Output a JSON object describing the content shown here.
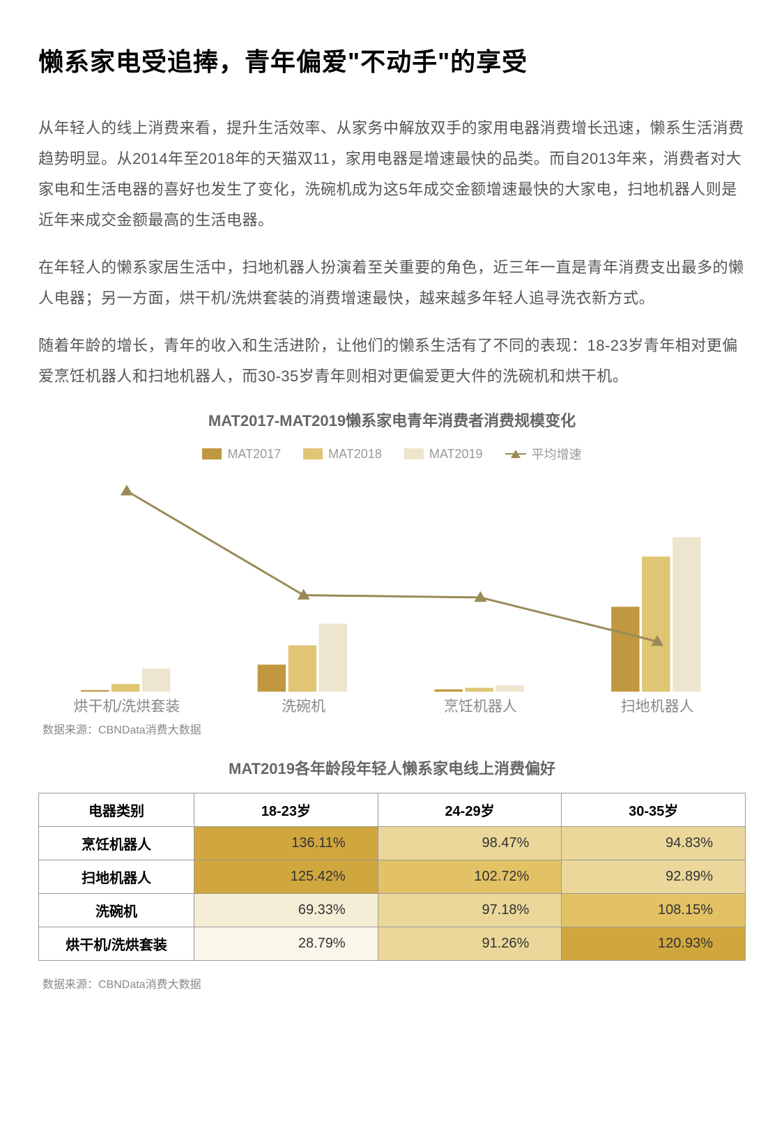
{
  "title": "懒系家电受追捧，青年偏爱\"不动手\"的享受",
  "paragraphs": [
    "从年轻人的线上消费来看，提升生活效率、从家务中解放双手的家用电器消费增长迅速，懒系生活消费趋势明显。从2014年至2018年的天猫双11，家用电器是增速最快的品类。而自2013年来，消费者对大家电和生活电器的喜好也发生了变化，洗碗机成为这5年成交金额增速最快的大家电，扫地机器人则是近年来成交金额最高的生活电器。",
    "在年轻人的懒系家居生活中，扫地机器人扮演着至关重要的角色，近三年一直是青年消费支出最多的懒人电器；另一方面，烘干机/洗烘套装的消费增速最快，越来越多年轻人追寻洗衣新方式。",
    "随着年龄的增长，青年的收入和生活进阶，让他们的懒系生活有了不同的表现：18-23岁青年相对更偏爱烹饪机器人和扫地机器人，而30-35岁青年则相对更偏爱更大件的洗碗机和烘干机。"
  ],
  "chart": {
    "title": "MAT2017-MAT2019懒系家电青年消费者消费规模变化",
    "legend": [
      {
        "label": "MAT2017",
        "type": "bar",
        "color": "#c09840"
      },
      {
        "label": "MAT2018",
        "type": "bar",
        "color": "#e0c574"
      },
      {
        "label": "MAT2019",
        "type": "bar",
        "color": "#eee5cf"
      },
      {
        "label": "平均增速",
        "type": "line",
        "color": "#9a8a56"
      }
    ],
    "categories": [
      "烘干机/洗烘套装",
      "洗碗机",
      "烹饪机器人",
      "扫地机器人"
    ],
    "series_2017": [
      2,
      35,
      3,
      110
    ],
    "series_2018": [
      10,
      60,
      5,
      175
    ],
    "series_2019": [
      30,
      88,
      8,
      200
    ],
    "growth_line": [
      260,
      125,
      122,
      65
    ],
    "bar_colors": [
      "#c09840",
      "#e0c574",
      "#eee5cf"
    ],
    "line_color": "#9a8a56",
    "y_max": 280,
    "bar_group_width": 0.52,
    "plot_bg": "#ffffff",
    "source": "数据来源：CBNData消费大数据"
  },
  "table": {
    "title": "MAT2019各年龄段年轻人懒系家电线上消费偏好",
    "columns": [
      "电器类别",
      "18-23岁",
      "24-29岁",
      "30-35岁"
    ],
    "rows": [
      {
        "label": "烹饪机器人",
        "vals": [
          "136.11%",
          "98.47%",
          "94.83%"
        ],
        "colors": [
          "#d0a63f",
          "#ebd79a",
          "#ebd79a"
        ]
      },
      {
        "label": "扫地机器人",
        "vals": [
          "125.42%",
          "102.72%",
          "92.89%"
        ],
        "colors": [
          "#d0a63f",
          "#e2c265",
          "#ebd79a"
        ]
      },
      {
        "label": "洗碗机",
        "vals": [
          "69.33%",
          "97.18%",
          "108.15%"
        ],
        "colors": [
          "#f5edd5",
          "#ebd79a",
          "#e2c265"
        ]
      },
      {
        "label": "烘干机/洗烘套装",
        "vals": [
          "28.79%",
          "91.26%",
          "120.93%"
        ],
        "colors": [
          "#faf6ea",
          "#ebd79a",
          "#d0a63f"
        ]
      }
    ],
    "source": "数据来源：CBNData消费大数据"
  }
}
